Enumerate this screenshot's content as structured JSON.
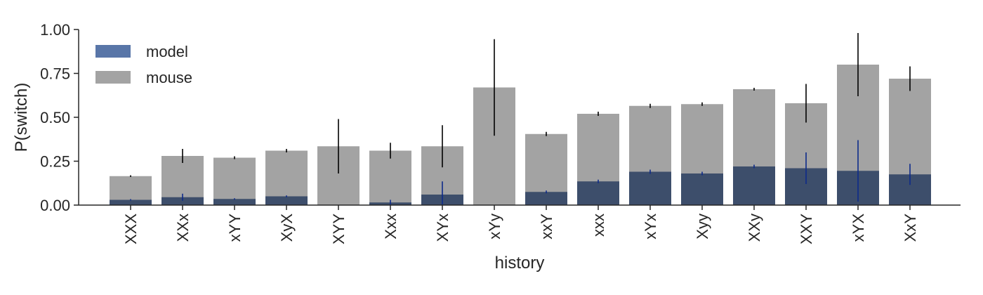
{
  "chart_data": {
    "type": "bar",
    "xlabel": "history",
    "ylabel": "P(switch)",
    "ylim": [
      0,
      1.0
    ],
    "yticks": [
      "0.00",
      "0.25",
      "0.50",
      "0.75",
      "1.00"
    ],
    "categories": [
      "XXX",
      "XXx",
      "xYY",
      "XyX",
      "XYY",
      "Xxx",
      "XYx",
      "xYy",
      "xxY",
      "xxx",
      "xYx",
      "Xyy",
      "XXy",
      "XXY",
      "xYX",
      "XxY"
    ],
    "series": [
      {
        "name": "mouse",
        "color": "#a3a3a3",
        "error_color": "#000000",
        "values": [
          0.165,
          0.28,
          0.27,
          0.31,
          0.335,
          0.31,
          0.335,
          0.67,
          0.405,
          0.52,
          0.565,
          0.575,
          0.66,
          0.58,
          0.8,
          0.72
        ],
        "error": [
          0.005,
          0.04,
          0.008,
          0.01,
          0.155,
          0.045,
          0.12,
          0.275,
          0.012,
          0.012,
          0.012,
          0.01,
          0.008,
          0.11,
          0.18,
          0.07
        ]
      },
      {
        "name": "model",
        "color": "#5976a8",
        "overlap_color": "#3d4e6b",
        "error_color": "#0d2a8a",
        "values": [
          0.03,
          0.045,
          0.035,
          0.05,
          0.0,
          0.015,
          0.06,
          0.0,
          0.075,
          0.135,
          0.19,
          0.18,
          0.22,
          0.21,
          0.195,
          0.175
        ],
        "error": [
          0.004,
          0.02,
          0.004,
          0.005,
          0.0,
          0.015,
          0.075,
          0.0,
          0.008,
          0.01,
          0.012,
          0.01,
          0.01,
          0.09,
          0.175,
          0.06
        ]
      }
    ],
    "legend": {
      "placement": "top-left",
      "entries": [
        "model",
        "mouse"
      ]
    },
    "grid": false
  }
}
